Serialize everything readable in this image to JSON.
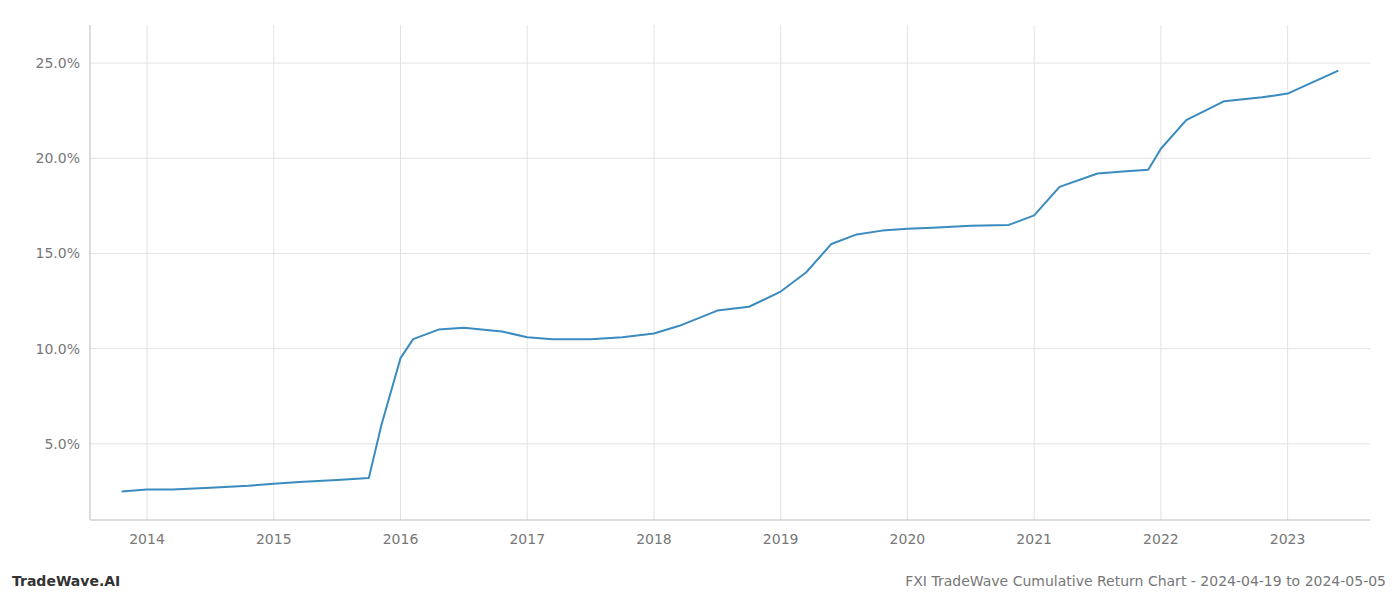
{
  "chart_data": {
    "type": "line",
    "title": "FXI TradeWave Cumulative Return Chart - 2024-04-19 to 2024-05-05",
    "annotations": [
      {
        "text": "TradeWave.AI"
      }
    ],
    "x": [
      2013.8,
      2014.0,
      2014.2,
      2014.5,
      2014.8,
      2015.0,
      2015.2,
      2015.5,
      2015.75,
      2015.85,
      2016.0,
      2016.1,
      2016.3,
      2016.5,
      2016.8,
      2017.0,
      2017.2,
      2017.5,
      2017.75,
      2018.0,
      2018.2,
      2018.5,
      2018.75,
      2019.0,
      2019.2,
      2019.4,
      2019.6,
      2019.8,
      2020.0,
      2020.2,
      2020.5,
      2020.8,
      2021.0,
      2021.2,
      2021.5,
      2021.7,
      2021.9,
      2022.0,
      2022.2,
      2022.5,
      2022.8,
      2022.9,
      2023.0,
      2023.2,
      2023.4
    ],
    "values": [
      2.5,
      2.6,
      2.6,
      2.7,
      2.8,
      2.9,
      3.0,
      3.1,
      3.2,
      6.0,
      9.5,
      10.5,
      11.0,
      11.1,
      10.9,
      10.6,
      10.5,
      10.5,
      10.6,
      10.8,
      11.2,
      12.0,
      12.2,
      13.0,
      14.0,
      15.5,
      16.0,
      16.2,
      16.3,
      16.35,
      16.45,
      16.5,
      17.0,
      18.5,
      19.2,
      19.3,
      19.4,
      20.5,
      22.0,
      23.0,
      23.2,
      23.3,
      23.4,
      24.0,
      24.6
    ],
    "color": "#3a8bbf",
    "xlim": [
      2013.55,
      2023.65
    ],
    "ylim": [
      1.0,
      27.0
    ],
    "xticks": [
      2014,
      2015,
      2016,
      2017,
      2018,
      2019,
      2020,
      2021,
      2022,
      2023
    ],
    "yticks": [
      {
        "value": 5,
        "label": "5.0%"
      },
      {
        "value": 10,
        "label": "10.0%"
      },
      {
        "value": 15,
        "label": "15.0%"
      },
      {
        "value": 20,
        "label": "20.0%"
      },
      {
        "value": 25,
        "label": "25.0%"
      }
    ],
    "grid": true
  }
}
